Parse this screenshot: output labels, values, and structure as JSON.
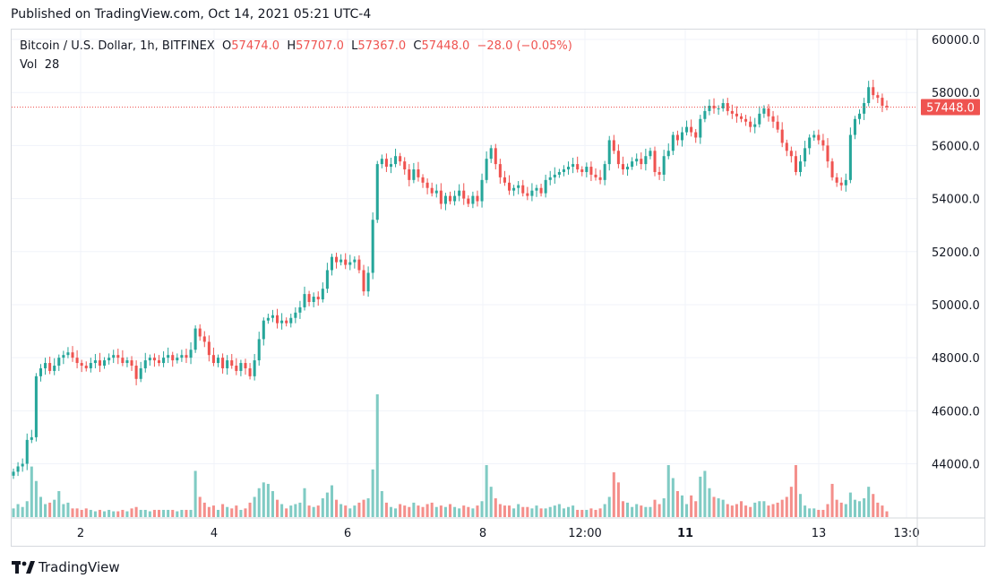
{
  "publish_line": "Published on TradingView.com, Oct 14, 2021 05:21 UTC-4",
  "header": {
    "symbol": "Bitcoin / U.S. Dollar, 1h, BITFINEX",
    "open_label": "O",
    "open": "57474.0",
    "high_label": "H",
    "high": "57707.0",
    "low_label": "L",
    "low": "57367.0",
    "close_label": "C",
    "close": "57448.0",
    "change": "−28.0 (−0.05%)",
    "vol_label": "Vol",
    "vol": "28"
  },
  "brand": "TradingView",
  "colors": {
    "up": "#26a69a",
    "down": "#ef5350",
    "up_volume": "#80cbc4",
    "down_volume": "#f48f8b",
    "grid": "#f0f3fa",
    "last_price": "#ef5350"
  },
  "chart_data": {
    "type": "candlestick",
    "price_axis_labels": [
      "60000.0",
      "58000.0",
      "56000.0",
      "54000.0",
      "52000.0",
      "50000.0",
      "48000.0",
      "46000.0",
      "44000.0"
    ],
    "price_axis_values": [
      60000,
      58000,
      56000,
      54000,
      52000,
      50000,
      48000,
      46000,
      44000
    ],
    "ylim": [
      42000,
      60000
    ],
    "time_axis_labels": [
      "2",
      "4",
      "6",
      "8",
      "12:00",
      "11",
      "13",
      "13:0"
    ],
    "time_axis_bold": [
      false,
      false,
      false,
      false,
      false,
      true,
      false,
      false
    ],
    "last_price": 57448.0,
    "last_price_label": "57448.0",
    "series_close": [
      43700,
      43900,
      44000,
      44900,
      45000,
      47300,
      47600,
      47800,
      47500,
      47700,
      48000,
      48100,
      48200,
      48000,
      47800,
      47700,
      47600,
      47800,
      47900,
      47700,
      47900,
      48000,
      48100,
      48000,
      47800,
      47900,
      47700,
      47200,
      47600,
      47900,
      48000,
      47900,
      47800,
      48000,
      48100,
      47900,
      48000,
      48100,
      48000,
      48300,
      49100,
      48800,
      48600,
      48100,
      47800,
      48000,
      47600,
      47900,
      47700,
      47500,
      47800,
      47600,
      47300,
      47900,
      48700,
      49400,
      49500,
      49600,
      49300,
      49400,
      49300,
      49500,
      49700,
      49900,
      50400,
      50100,
      50300,
      50200,
      50600,
      51300,
      51800,
      51600,
      51700,
      51500,
      51600,
      51700,
      51300,
      50500,
      51200,
      53200,
      55300,
      55500,
      55200,
      55300,
      55600,
      55400,
      55100,
      54700,
      55100,
      54800,
      54600,
      54400,
      54200,
      54300,
      53800,
      54100,
      53900,
      54100,
      54300,
      54000,
      53800,
      54100,
      53900,
      54700,
      55500,
      55900,
      55300,
      54800,
      54600,
      54300,
      54400,
      54500,
      54200,
      54100,
      54300,
      54400,
      54200,
      54700,
      54800,
      54900,
      55000,
      55100,
      55200,
      55300,
      55100,
      55000,
      55200,
      54900,
      54800,
      54700,
      55300,
      56200,
      55800,
      55300,
      55100,
      55200,
      55400,
      55500,
      55300,
      55600,
      55800,
      55000,
      54900,
      55600,
      55800,
      56400,
      56200,
      56500,
      56700,
      56500,
      56300,
      57000,
      57300,
      57500,
      57400,
      57400,
      57600,
      57300,
      57200,
      57100,
      57000,
      56900,
      56700,
      56800,
      57200,
      57400,
      57100,
      56900,
      56600,
      56100,
      55800,
      55600,
      55000,
      55400,
      55900,
      56300,
      56400,
      56200,
      56000,
      55400,
      54800,
      54600,
      54500,
      54700,
      56400,
      57000,
      57200,
      57600,
      58200,
      57900,
      57800,
      57500,
      57448
    ],
    "volume": [
      6,
      9,
      7,
      11,
      35,
      25,
      14,
      9,
      10,
      12,
      18,
      9,
      10,
      6,
      6,
      5,
      6,
      5,
      4,
      5,
      4,
      5,
      4,
      4,
      5,
      4,
      6,
      7,
      5,
      5,
      4,
      5,
      5,
      5,
      5,
      5,
      4,
      5,
      5,
      5,
      32,
      14,
      10,
      7,
      8,
      5,
      9,
      7,
      6,
      8,
      5,
      6,
      10,
      14,
      20,
      24,
      23,
      18,
      12,
      9,
      6,
      8,
      9,
      10,
      20,
      8,
      7,
      8,
      13,
      17,
      22,
      12,
      9,
      8,
      6,
      8,
      10,
      12,
      13,
      33,
      85,
      18,
      10,
      7,
      6,
      9,
      8,
      7,
      10,
      8,
      7,
      9,
      10,
      7,
      8,
      7,
      9,
      7,
      6,
      8,
      7,
      6,
      8,
      11,
      36,
      21,
      13,
      9,
      8,
      8,
      6,
      9,
      7,
      7,
      6,
      8,
      6,
      6,
      7,
      8,
      9,
      6,
      7,
      8,
      5,
      5,
      5,
      6,
      5,
      6,
      9,
      14,
      31,
      24,
      11,
      10,
      7,
      9,
      8,
      7,
      7,
      12,
      9,
      13,
      36,
      27,
      18,
      15,
      9,
      15,
      11,
      28,
      32,
      20,
      14,
      13,
      12,
      9,
      8,
      9,
      11,
      8,
      7,
      10,
      11,
      11,
      8,
      9,
      10,
      12,
      14,
      21,
      36,
      16,
      8,
      6,
      6,
      5,
      5,
      9,
      23,
      12,
      10,
      9,
      17,
      12,
      11,
      13,
      21,
      16,
      10,
      8,
      4
    ],
    "volume_colors": "up/down follows candle direction"
  }
}
